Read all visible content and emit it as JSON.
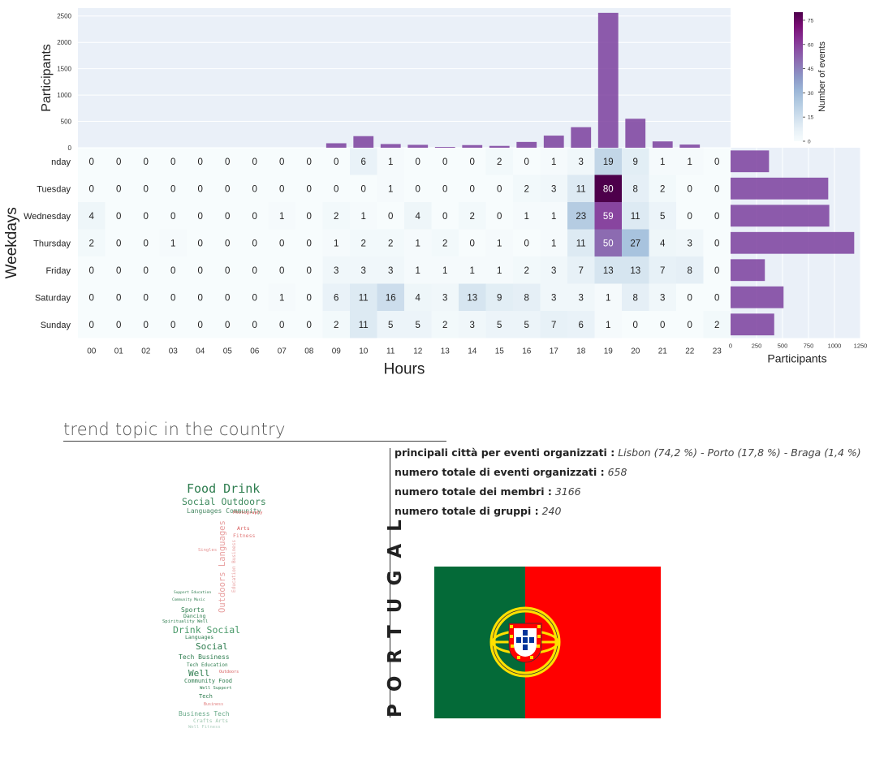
{
  "chart_data": [
    {
      "type": "heatmap",
      "xlabel": "Hours",
      "ylabel": "Weekdays",
      "x": [
        "00",
        "01",
        "02",
        "03",
        "04",
        "05",
        "06",
        "07",
        "08",
        "09",
        "10",
        "11",
        "12",
        "13",
        "14",
        "15",
        "16",
        "17",
        "18",
        "19",
        "20",
        "21",
        "22",
        "23"
      ],
      "y": [
        "nday",
        "Tuesday",
        "Wednesday",
        "Thursday",
        "Friday",
        "Saturday",
        "Sunday"
      ],
      "values": [
        [
          0,
          0,
          0,
          0,
          0,
          0,
          0,
          0,
          0,
          0,
          6,
          1,
          0,
          0,
          0,
          2,
          0,
          1,
          3,
          19,
          9,
          1,
          1,
          0
        ],
        [
          0,
          0,
          0,
          0,
          0,
          0,
          0,
          0,
          0,
          0,
          0,
          1,
          0,
          0,
          0,
          0,
          2,
          3,
          11,
          80,
          8,
          2,
          0,
          0
        ],
        [
          4,
          0,
          0,
          0,
          0,
          0,
          0,
          1,
          0,
          2,
          1,
          0,
          4,
          0,
          2,
          0,
          1,
          1,
          23,
          59,
          11,
          5,
          0,
          0
        ],
        [
          2,
          0,
          0,
          1,
          0,
          0,
          0,
          0,
          0,
          1,
          2,
          2,
          1,
          2,
          0,
          1,
          0,
          1,
          11,
          50,
          27,
          4,
          3,
          0
        ],
        [
          0,
          0,
          0,
          0,
          0,
          0,
          0,
          0,
          0,
          3,
          3,
          3,
          1,
          1,
          1,
          1,
          2,
          3,
          7,
          13,
          13,
          7,
          8,
          0
        ],
        [
          0,
          0,
          0,
          0,
          0,
          0,
          0,
          1,
          0,
          6,
          11,
          16,
          4,
          3,
          13,
          9,
          8,
          3,
          3,
          1,
          8,
          3,
          0,
          0
        ],
        [
          0,
          0,
          0,
          0,
          0,
          0,
          0,
          0,
          0,
          2,
          11,
          5,
          5,
          2,
          3,
          5,
          5,
          7,
          6,
          1,
          0,
          0,
          0,
          2
        ]
      ],
      "colorbar": {
        "label": "Number of events",
        "ticks": [
          0,
          15,
          30,
          45,
          60,
          75
        ],
        "range": [
          0,
          80
        ],
        "colormap": "BuPu"
      },
      "grid": true
    },
    {
      "type": "bar",
      "ylabel": "Participants",
      "categories": [
        "00",
        "01",
        "02",
        "03",
        "04",
        "05",
        "06",
        "07",
        "08",
        "09",
        "10",
        "11",
        "12",
        "13",
        "14",
        "15",
        "16",
        "17",
        "18",
        "19",
        "20",
        "21",
        "22",
        "23"
      ],
      "values": [
        0,
        0,
        0,
        0,
        0,
        0,
        0,
        0,
        0,
        85,
        220,
        70,
        55,
        15,
        50,
        35,
        110,
        230,
        390,
        2560,
        550,
        120,
        60,
        0
      ],
      "ylim": [
        0,
        2650
      ],
      "yticks": [
        0,
        500,
        1000,
        1500,
        2000,
        2500
      ],
      "color": "#7b3f9e"
    },
    {
      "type": "bar",
      "orientation": "horizontal",
      "xlabel": "Participants",
      "categories": [
        "nday",
        "Tuesday",
        "Wednesday",
        "Thursday",
        "Friday",
        "Saturday",
        "Sunday"
      ],
      "values": [
        370,
        940,
        950,
        1190,
        330,
        510,
        420
      ],
      "xlim": [
        0,
        1250
      ],
      "xticks": [
        0,
        250,
        500,
        750,
        1000,
        1250
      ],
      "color": "#7b3f9e"
    }
  ],
  "trend": {
    "title": "trend topic in the country",
    "cities_label": "principali città per eventi organizzati :",
    "cities_value": "Lisbon (74,2 %) - Porto (17,8 %) - Braga (1,4 %)",
    "events_label": "numero totale di eventi organizzati :",
    "events_value": "658",
    "members_label": "numero totale dei membri :",
    "members_value": "3166",
    "groups_label": "numero totale di gruppi :",
    "groups_value": "240",
    "country": "PORTUGAL"
  },
  "wordcloud": [
    {
      "t": "Food Drink",
      "c": "#2e7d4f"
    },
    {
      "t": "Social Outdoors",
      "c": "#3e8a5e"
    },
    {
      "t": "Languages Community",
      "c": "#4a8a66"
    },
    {
      "t": "Photography",
      "c": "#d65a5a"
    },
    {
      "t": "Arts",
      "c": "#d65a5a"
    },
    {
      "t": "Fitness",
      "c": "#e07a7a"
    },
    {
      "t": "Singles",
      "c": "#e59090"
    },
    {
      "t": "Outdoors Languages",
      "c": "#e8a0a0"
    },
    {
      "t": "Education Business",
      "c": "#e8a0a0"
    },
    {
      "t": "Support Education",
      "c": "#2e7d4f"
    },
    {
      "t": "Community Music",
      "c": "#2e7d4f"
    },
    {
      "t": "Sports",
      "c": "#2e7d4f"
    },
    {
      "t": "Dancing",
      "c": "#2e7d4f"
    },
    {
      "t": "Spirituality Well",
      "c": "#2e7d4f"
    },
    {
      "t": "Drink Social",
      "c": "#4a9a6a"
    },
    {
      "t": "Languages",
      "c": "#2e7d4f"
    },
    {
      "t": "Social",
      "c": "#2e7d4f"
    },
    {
      "t": "Tech Business",
      "c": "#2e7d4f"
    },
    {
      "t": "Tech Education",
      "c": "#2e7d4f"
    },
    {
      "t": "Well",
      "c": "#2e7d4f"
    },
    {
      "t": "Outdoors",
      "c": "#d65a5a"
    },
    {
      "t": "Community Food",
      "c": "#2e7d4f"
    },
    {
      "t": "Well Support",
      "c": "#2e7d4f"
    },
    {
      "t": "Tech",
      "c": "#2e7d4f"
    },
    {
      "t": "Business",
      "c": "#e07a7a"
    },
    {
      "t": "Business Tech",
      "c": "#6aaa8a"
    },
    {
      "t": "Crafts Arts",
      "c": "#a0c8b0"
    },
    {
      "t": "Well Fitness",
      "c": "#b0d0c0"
    }
  ]
}
